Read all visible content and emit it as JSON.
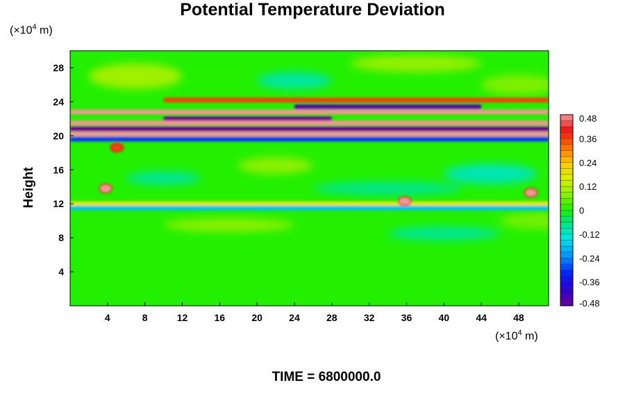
{
  "chart_data": {
    "type": "heatmap",
    "title": "Potential Temperature Deviation",
    "ylabel": "Height",
    "xunit_prefix": "(×10",
    "xunit_exp": "4",
    "xunit_suffix": " m)",
    "yunit_prefix": "(×10",
    "yunit_exp": "4",
    "yunit_suffix": " m)",
    "xlim": [
      0,
      51.2
    ],
    "ylim": [
      0,
      30
    ],
    "xticks": [
      4,
      8,
      12,
      16,
      20,
      24,
      28,
      32,
      36,
      40,
      44,
      48
    ],
    "yticks": [
      4,
      8,
      12,
      16,
      20,
      24,
      28
    ],
    "colorbar": {
      "range": [
        -0.48,
        0.48
      ],
      "step": 0.03,
      "tick_labels": [
        "0.48",
        "0.36",
        "0.24",
        "0.12",
        "0",
        "-0.12",
        "-0.24",
        "-0.36",
        "-0.48"
      ],
      "tick_values": [
        0.48,
        0.36,
        0.24,
        0.12,
        0,
        -0.12,
        -0.24,
        -0.36,
        -0.48
      ]
    },
    "bands": [
      {
        "y": 24.2,
        "x_start": 10,
        "x_end": 51.2,
        "value": 0.36
      },
      {
        "y": 23.4,
        "x_start": 24,
        "x_end": 44,
        "value": -0.45
      },
      {
        "y": 22.8,
        "x_start": 0,
        "x_end": 51.2,
        "value": 0.48
      },
      {
        "y": 22.0,
        "x_start": 10,
        "x_end": 28,
        "value": -0.48
      },
      {
        "y": 21.5,
        "x_start": 0,
        "x_end": 51.2,
        "value": 0.48
      },
      {
        "y": 20.8,
        "x_start": 0,
        "x_end": 51.2,
        "value": -0.48
      },
      {
        "y": 20.2,
        "x_start": 0,
        "x_end": 51.2,
        "value": 0.48
      },
      {
        "y": 19.6,
        "x_start": 0,
        "x_end": 51.2,
        "value": -0.3
      },
      {
        "y": 12.0,
        "x_start": 0,
        "x_end": 51.2,
        "value": 0.18
      },
      {
        "y": 11.5,
        "x_start": 0,
        "x_end": 51.2,
        "value": -0.18
      }
    ],
    "blobs": [
      {
        "x": 3.8,
        "y": 13.8,
        "value": 0.48
      },
      {
        "x": 35.8,
        "y": 12.3,
        "value": 0.48
      },
      {
        "x": 49.3,
        "y": 13.3,
        "value": 0.48
      },
      {
        "x": 5.0,
        "y": 18.6,
        "value": 0.36
      }
    ]
  },
  "footer": {
    "time_label": "TIME = 6800000.0"
  }
}
